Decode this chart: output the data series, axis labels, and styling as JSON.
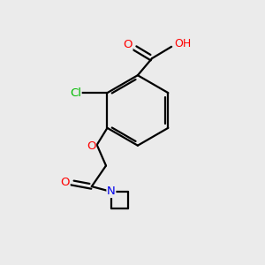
{
  "bg_color": "#ebebeb",
  "bond_color": "#000000",
  "atom_colors": {
    "O": "#ff0000",
    "Cl": "#00bb00",
    "N": "#0000ee",
    "C": "#000000",
    "H": "#888888"
  },
  "figsize": [
    3.0,
    3.0
  ],
  "dpi": 100,
  "bond_lw": 1.6,
  "font_size": 9.5
}
